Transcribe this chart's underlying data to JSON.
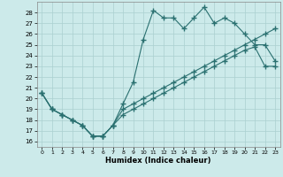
{
  "title": "",
  "xlabel": "Humidex (Indice chaleur)",
  "xlim": [
    -0.5,
    23.5
  ],
  "ylim": [
    15.5,
    29.0
  ],
  "xticks": [
    0,
    1,
    2,
    3,
    4,
    5,
    6,
    7,
    8,
    9,
    10,
    11,
    12,
    13,
    14,
    15,
    16,
    17,
    18,
    19,
    20,
    21,
    22,
    23
  ],
  "yticks": [
    16,
    17,
    18,
    19,
    20,
    21,
    22,
    23,
    24,
    25,
    26,
    27,
    28
  ],
  "bg_color": "#cceaea",
  "grid_color": "#aad0d0",
  "line_color": "#2a7070",
  "hours": [
    0,
    1,
    2,
    3,
    4,
    5,
    6,
    7,
    8,
    9,
    10,
    11,
    12,
    13,
    14,
    15,
    16,
    17,
    18,
    19,
    20,
    21,
    22,
    23
  ],
  "line_top": [
    20.5,
    19.0,
    18.5,
    18.0,
    17.5,
    16.5,
    16.5,
    17.5,
    19.5,
    21.5,
    25.5,
    28.2,
    27.5,
    27.5,
    26.5,
    27.5,
    28.5,
    27.0,
    27.5,
    27.0,
    26.0,
    25.0,
    25.0,
    23.5
  ],
  "line_mid": [
    20.5,
    19.0,
    18.5,
    18.0,
    17.5,
    16.5,
    16.5,
    17.5,
    19.0,
    19.5,
    20.0,
    20.5,
    21.0,
    21.5,
    22.0,
    22.5,
    23.0,
    23.5,
    24.0,
    24.5,
    25.0,
    25.5,
    26.0,
    26.5
  ],
  "line_bot": [
    20.5,
    19.0,
    18.5,
    18.0,
    17.5,
    16.5,
    16.5,
    17.5,
    18.5,
    19.0,
    19.5,
    20.0,
    20.5,
    21.0,
    21.5,
    22.0,
    22.5,
    23.0,
    23.5,
    24.0,
    24.5,
    24.8,
    23.0,
    23.0
  ]
}
